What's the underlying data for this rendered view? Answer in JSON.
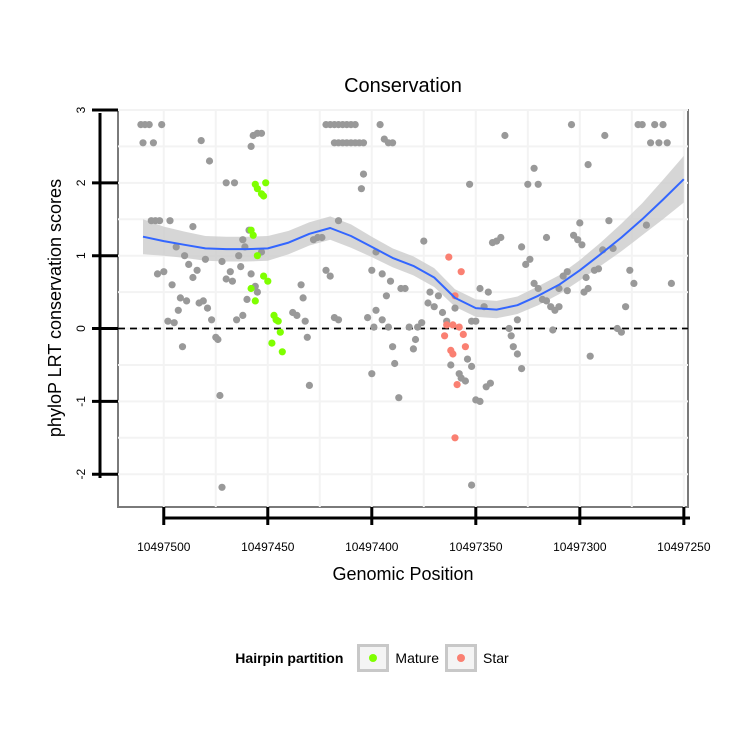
{
  "chart_data": {
    "type": "scatter",
    "title": "Conservation",
    "xlabel": "Genomic Position",
    "ylabel": "phyloP LRT conservation scores",
    "x_reversed": true,
    "xlim": [
      10497522,
      10497248
    ],
    "ylim": [
      -2.45,
      3.0
    ],
    "x_ticks": [
      10497500,
      10497450,
      10497400,
      10497350,
      10497300,
      10497250
    ],
    "y_ticks": [
      -2,
      -1,
      0,
      1,
      2,
      3
    ],
    "reference_line": {
      "y": 0,
      "style": "dashed"
    },
    "colors": {
      "other": "#999999",
      "mature": "#7FFF00",
      "star": "#FA8072",
      "smooth": "#3366FF",
      "ribbon": "#CCCCCC",
      "axis": "#7a7a7a",
      "grid": "#f3f3f3"
    },
    "legend": {
      "title": "Hairpin partition",
      "items": [
        {
          "label": "Mature",
          "color": "#7FFF00"
        },
        {
          "label": "Star",
          "color": "#FA8072"
        }
      ]
    },
    "series": [
      {
        "name": "Other",
        "points": [
          [
            10497511,
            2.8
          ],
          [
            10497510,
            2.55
          ],
          [
            10497509,
            2.8
          ],
          [
            10497507,
            2.8
          ],
          [
            10497505,
            2.55
          ],
          [
            10497501,
            2.8
          ],
          [
            10497506,
            1.48
          ],
          [
            10497504,
            1.48
          ],
          [
            10497502,
            1.48
          ],
          [
            10497497,
            1.48
          ],
          [
            10497494,
            1.12
          ],
          [
            10497490,
            1.0
          ],
          [
            10497488,
            0.88
          ],
          [
            10497503,
            0.75
          ],
          [
            10497500,
            0.78
          ],
          [
            10497496,
            0.6
          ],
          [
            10497492,
            0.42
          ],
          [
            10497489,
            0.38
          ],
          [
            10497498,
            0.1
          ],
          [
            10497495,
            0.08
          ],
          [
            10497493,
            0.25
          ],
          [
            10497491,
            -0.25
          ],
          [
            10497486,
            0.7
          ],
          [
            10497484,
            0.8
          ],
          [
            10497483,
            0.35
          ],
          [
            10497481,
            0.38
          ],
          [
            10497479,
            0.28
          ],
          [
            10497477,
            0.12
          ],
          [
            10497475,
            -0.12
          ],
          [
            10497474,
            -0.15
          ],
          [
            10497482,
            2.58
          ],
          [
            10497478,
            2.3
          ],
          [
            10497470,
            2.0
          ],
          [
            10497466,
            2.0
          ],
          [
            10497486,
            1.4
          ],
          [
            10497472,
            0.92
          ],
          [
            10497470,
            0.68
          ],
          [
            10497468,
            0.78
          ],
          [
            10497467,
            0.65
          ],
          [
            10497465,
            0.12
          ],
          [
            10497462,
            0.18
          ],
          [
            10497460,
            0.4
          ],
          [
            10497473,
            -0.92
          ],
          [
            10497472,
            -2.18
          ],
          [
            10497480,
            0.95
          ],
          [
            10497464,
            1.0
          ],
          [
            10497461,
            1.12
          ],
          [
            10497462,
            1.22
          ],
          [
            10497459,
            1.35
          ],
          [
            10497458,
            0.75
          ],
          [
            10497456,
            0.58
          ],
          [
            10497455,
            0.5
          ],
          [
            10497457,
            2.65
          ],
          [
            10497455,
            2.68
          ],
          [
            10497453,
            2.68
          ],
          [
            10497458,
            2.5
          ],
          [
            10497453,
            1.05
          ],
          [
            10497463,
            0.85
          ],
          [
            10497438,
            0.22
          ],
          [
            10497436,
            0.18
          ],
          [
            10497434,
            0.6
          ],
          [
            10497433,
            0.42
          ],
          [
            10497431,
            -0.12
          ],
          [
            10497430,
            -0.78
          ],
          [
            10497428,
            1.22
          ],
          [
            10497426,
            1.25
          ],
          [
            10497432,
            0.1
          ],
          [
            10497424,
            1.25
          ],
          [
            10497422,
            0.8
          ],
          [
            10497420,
            0.72
          ],
          [
            10497418,
            0.15
          ],
          [
            10497416,
            0.12
          ],
          [
            10497422,
            2.8
          ],
          [
            10497420,
            2.8
          ],
          [
            10497418,
            2.8
          ],
          [
            10497416,
            2.8
          ],
          [
            10497414,
            2.8
          ],
          [
            10497412,
            2.8
          ],
          [
            10497410,
            2.8
          ],
          [
            10497408,
            2.8
          ],
          [
            10497418,
            2.55
          ],
          [
            10497416,
            2.55
          ],
          [
            10497414,
            2.55
          ],
          [
            10497412,
            2.55
          ],
          [
            10497410,
            2.55
          ],
          [
            10497408,
            2.55
          ],
          [
            10497406,
            2.55
          ],
          [
            10497404,
            2.55
          ],
          [
            10497416,
            1.48
          ],
          [
            10497405,
            1.92
          ],
          [
            10497404,
            2.12
          ],
          [
            10497396,
            2.8
          ],
          [
            10497394,
            2.6
          ],
          [
            10497392,
            2.55
          ],
          [
            10497390,
            2.55
          ],
          [
            10497398,
            0.25
          ],
          [
            10497395,
            0.12
          ],
          [
            10497392,
            0.02
          ],
          [
            10497390,
            -0.25
          ],
          [
            10497399,
            0.02
          ],
          [
            10497400,
            -0.62
          ],
          [
            10497402,
            0.15
          ],
          [
            10497400,
            0.8
          ],
          [
            10497398,
            1.05
          ],
          [
            10497395,
            0.75
          ],
          [
            10497393,
            0.45
          ],
          [
            10497391,
            0.65
          ],
          [
            10497389,
            -0.48
          ],
          [
            10497387,
            -0.95
          ],
          [
            10497386,
            0.55
          ],
          [
            10497384,
            0.55
          ],
          [
            10497382,
            0.02
          ],
          [
            10497380,
            -0.28
          ],
          [
            10497379,
            -0.15
          ],
          [
            10497378,
            0.02
          ],
          [
            10497376,
            0.08
          ],
          [
            10497375,
            1.2
          ],
          [
            10497373,
            0.35
          ],
          [
            10497372,
            0.5
          ],
          [
            10497370,
            0.3
          ],
          [
            10497368,
            0.45
          ],
          [
            10497366,
            0.22
          ],
          [
            10497364,
            0.1
          ],
          [
            10497362,
            -0.5
          ],
          [
            10497360,
            0.28
          ],
          [
            10497358,
            -0.62
          ],
          [
            10497357,
            -0.68
          ],
          [
            10497355,
            -0.72
          ],
          [
            10497354,
            -0.42
          ],
          [
            10497352,
            -0.52
          ],
          [
            10497350,
            -0.98
          ],
          [
            10497348,
            -1.0
          ],
          [
            10497352,
            0.1
          ],
          [
            10497350,
            0.1
          ],
          [
            10497348,
            0.55
          ],
          [
            10497346,
            0.3
          ],
          [
            10497344,
            0.5
          ],
          [
            10497342,
            1.18
          ],
          [
            10497340,
            1.2
          ],
          [
            10497338,
            1.25
          ],
          [
            10497336,
            2.65
          ],
          [
            10497334,
            0.0
          ],
          [
            10497333,
            -0.1
          ],
          [
            10497332,
            -0.25
          ],
          [
            10497330,
            -0.35
          ],
          [
            10497328,
            -0.55
          ],
          [
            10497353,
            1.98
          ],
          [
            10497352,
            -2.15
          ],
          [
            10497326,
            0.88
          ],
          [
            10497324,
            0.95
          ],
          [
            10497322,
            0.62
          ],
          [
            10497320,
            0.55
          ],
          [
            10497318,
            0.4
          ],
          [
            10497316,
            0.38
          ],
          [
            10497314,
            0.3
          ],
          [
            10497325,
            1.98
          ],
          [
            10497322,
            2.2
          ],
          [
            10497320,
            1.98
          ],
          [
            10497316,
            1.25
          ],
          [
            10497313,
            -0.02
          ],
          [
            10497312,
            0.25
          ],
          [
            10497310,
            0.3
          ],
          [
            10497308,
            0.72
          ],
          [
            10497306,
            0.78
          ],
          [
            10497304,
            2.8
          ],
          [
            10497303,
            1.28
          ],
          [
            10497301,
            1.22
          ],
          [
            10497299,
            1.15
          ],
          [
            10497297,
            0.7
          ],
          [
            10497295,
            -0.38
          ],
          [
            10497293,
            0.8
          ],
          [
            10497291,
            0.82
          ],
          [
            10497289,
            1.08
          ],
          [
            10497288,
            2.65
          ],
          [
            10497286,
            1.48
          ],
          [
            10497284,
            1.1
          ],
          [
            10497282,
            0.0
          ],
          [
            10497280,
            -0.05
          ],
          [
            10497278,
            0.3
          ],
          [
            10497276,
            0.8
          ],
          [
            10497274,
            0.62
          ],
          [
            10497272,
            2.8
          ],
          [
            10497270,
            2.8
          ],
          [
            10497268,
            1.42
          ],
          [
            10497266,
            2.55
          ],
          [
            10497264,
            2.8
          ],
          [
            10497262,
            2.55
          ],
          [
            10497260,
            2.8
          ],
          [
            10497258,
            2.55
          ],
          [
            10497256,
            0.62
          ],
          [
            10497298,
            0.5
          ],
          [
            10497296,
            0.55
          ],
          [
            10497310,
            0.55
          ],
          [
            10497306,
            0.52
          ],
          [
            10497330,
            0.12
          ],
          [
            10497328,
            1.12
          ],
          [
            10497296,
            2.25
          ],
          [
            10497300,
            1.45
          ],
          [
            10497345,
            -0.8
          ],
          [
            10497343,
            -0.75
          ]
        ]
      },
      {
        "name": "Mature",
        "points": [
          [
            10497456,
            1.98
          ],
          [
            10497455,
            1.92
          ],
          [
            10497453,
            1.85
          ],
          [
            10497452,
            1.82
          ],
          [
            10497451,
            2.0
          ],
          [
            10497458,
            1.35
          ],
          [
            10497457,
            1.28
          ],
          [
            10497455,
            1.0
          ],
          [
            10497452,
            0.72
          ],
          [
            10497450,
            0.65
          ],
          [
            10497456,
            0.38
          ],
          [
            10497458,
            0.55
          ],
          [
            10497447,
            0.18
          ],
          [
            10497446,
            0.12
          ],
          [
            10497445,
            0.1
          ],
          [
            10497444,
            -0.05
          ],
          [
            10497448,
            -0.2
          ],
          [
            10497443,
            -0.32
          ]
        ]
      },
      {
        "name": "Star",
        "points": [
          [
            10497363,
            0.98
          ],
          [
            10497357,
            0.78
          ],
          [
            10497360,
            0.45
          ],
          [
            10497361,
            0.05
          ],
          [
            10497358,
            0.02
          ],
          [
            10497364,
            0.05
          ],
          [
            10497365,
            -0.1
          ],
          [
            10497362,
            -0.3
          ],
          [
            10497361,
            -0.35
          ],
          [
            10497356,
            -0.08
          ],
          [
            10497355,
            -0.25
          ],
          [
            10497359,
            -0.77
          ],
          [
            10497360,
            -1.5
          ]
        ]
      }
    ],
    "smooth": {
      "x": [
        10497510,
        10497500,
        10497490,
        10497480,
        10497470,
        10497460,
        10497450,
        10497440,
        10497430,
        10497420,
        10497410,
        10497400,
        10497390,
        10497380,
        10497370,
        10497360,
        10497350,
        10497340,
        10497330,
        10497320,
        10497310,
        10497300,
        10497290,
        10497280,
        10497270,
        10497260,
        10497250
      ],
      "y": [
        1.26,
        1.2,
        1.15,
        1.1,
        1.09,
        1.09,
        1.1,
        1.18,
        1.3,
        1.38,
        1.27,
        1.12,
        0.97,
        0.86,
        0.7,
        0.42,
        0.28,
        0.26,
        0.32,
        0.45,
        0.6,
        0.8,
        1.02,
        1.25,
        1.5,
        1.77,
        2.05
      ],
      "lower": [
        1.02,
        1.0,
        0.97,
        0.93,
        0.92,
        0.92,
        0.93,
        1.02,
        1.14,
        1.22,
        1.11,
        0.98,
        0.84,
        0.73,
        0.57,
        0.3,
        0.16,
        0.14,
        0.2,
        0.32,
        0.47,
        0.66,
        0.86,
        1.06,
        1.28,
        1.5,
        1.73
      ],
      "upper": [
        1.5,
        1.4,
        1.33,
        1.27,
        1.26,
        1.26,
        1.27,
        1.34,
        1.46,
        1.54,
        1.43,
        1.26,
        1.1,
        0.99,
        0.83,
        0.54,
        0.4,
        0.38,
        0.44,
        0.58,
        0.73,
        0.94,
        1.18,
        1.44,
        1.72,
        2.04,
        2.37
      ]
    }
  }
}
